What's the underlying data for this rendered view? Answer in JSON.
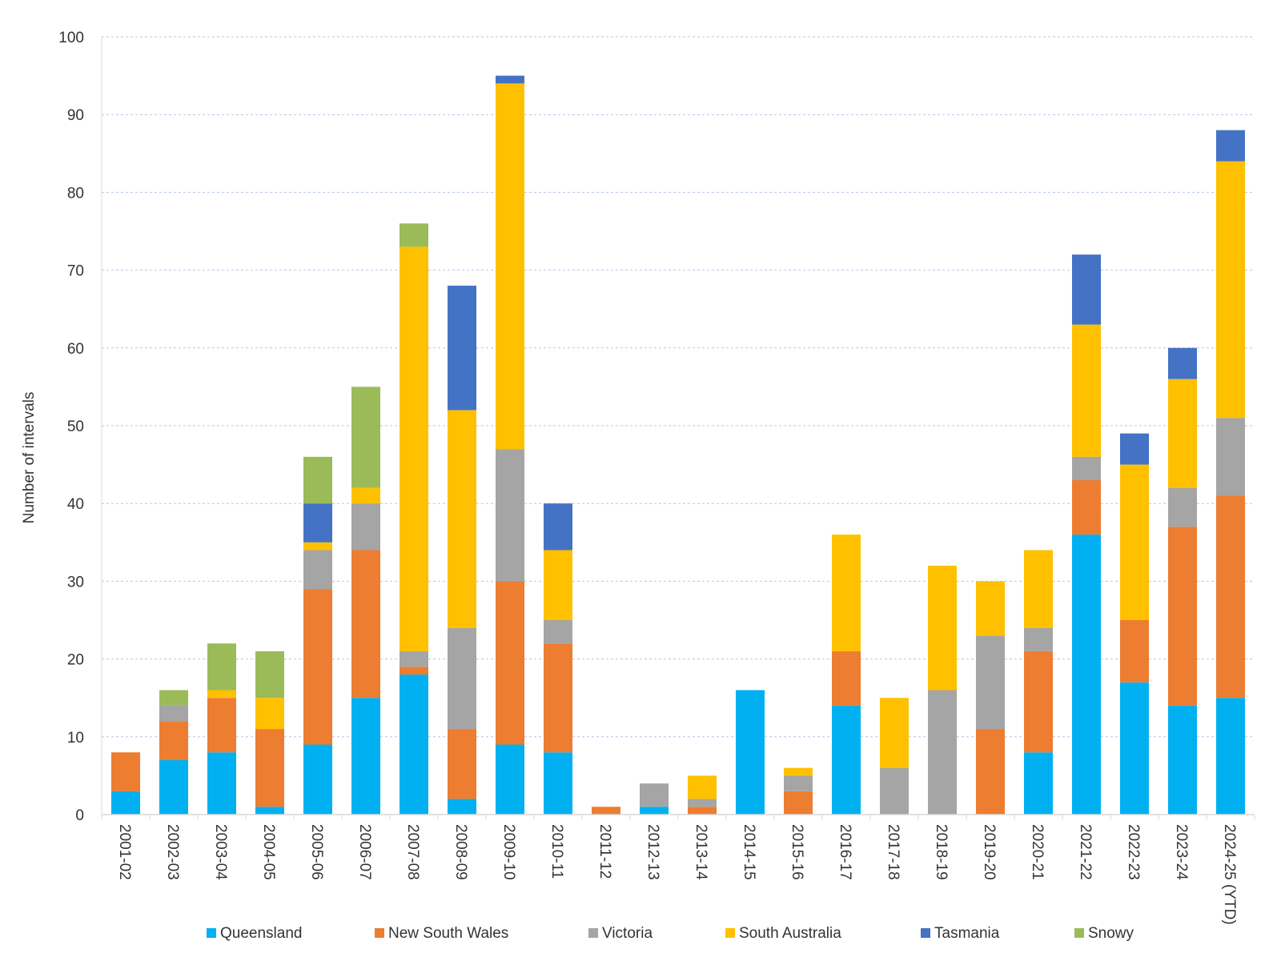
{
  "chart_data": {
    "type": "bar",
    "stacked": true,
    "title": "",
    "xlabel": "",
    "ylabel": "Number of intervals",
    "ylim": [
      0,
      100
    ],
    "yticks": [
      0,
      10,
      20,
      30,
      40,
      50,
      60,
      70,
      80,
      90,
      100
    ],
    "grid": "horizontal dashed",
    "legend_position": "bottom",
    "categories": [
      "2001-02",
      "2002-03",
      "2003-04",
      "2004-05",
      "2005-06",
      "2006-07",
      "2007-08",
      "2008-09",
      "2009-10",
      "2010-11",
      "2011-12",
      "2012-13",
      "2013-14",
      "2014-15",
      "2015-16",
      "2016-17",
      "2017-18",
      "2018-19",
      "2019-20",
      "2020-21",
      "2021-22",
      "2022-23",
      "2023-24",
      "2024-25 (YTD)"
    ],
    "series": [
      {
        "name": "Queensland",
        "color": "#00B0F0",
        "values": [
          3,
          7,
          8,
          1,
          9,
          15,
          18,
          2,
          9,
          8,
          0,
          1,
          0,
          16,
          0,
          14,
          0,
          0,
          0,
          8,
          36,
          17,
          14,
          15
        ]
      },
      {
        "name": "New South Wales",
        "color": "#ED7D31",
        "values": [
          5,
          5,
          7,
          10,
          20,
          19,
          1,
          9,
          21,
          14,
          1,
          0,
          1,
          0,
          3,
          7,
          0,
          0,
          11,
          13,
          7,
          8,
          23,
          26
        ]
      },
      {
        "name": "Victoria",
        "color": "#A5A5A5",
        "values": [
          0,
          2,
          0,
          0,
          5,
          6,
          2,
          13,
          17,
          3,
          0,
          3,
          1,
          0,
          2,
          0,
          6,
          16,
          12,
          3,
          3,
          0,
          5,
          10
        ]
      },
      {
        "name": "South Australia",
        "color": "#FFC000",
        "values": [
          0,
          0,
          1,
          4,
          1,
          2,
          52,
          28,
          47,
          9,
          0,
          0,
          3,
          0,
          1,
          15,
          9,
          16,
          7,
          10,
          17,
          20,
          14,
          33
        ]
      },
      {
        "name": "Tasmania",
        "color": "#4472C4",
        "values": [
          0,
          0,
          0,
          0,
          5,
          0,
          0,
          16,
          1,
          6,
          0,
          0,
          0,
          0,
          0,
          0,
          0,
          0,
          0,
          0,
          9,
          4,
          4,
          4
        ]
      },
      {
        "name": "Snowy",
        "color": "#9BBB59",
        "values": [
          0,
          2,
          6,
          6,
          6,
          13,
          3,
          0,
          0,
          0,
          0,
          0,
          0,
          0,
          0,
          0,
          0,
          0,
          0,
          0,
          0,
          0,
          0,
          0
        ]
      }
    ]
  }
}
